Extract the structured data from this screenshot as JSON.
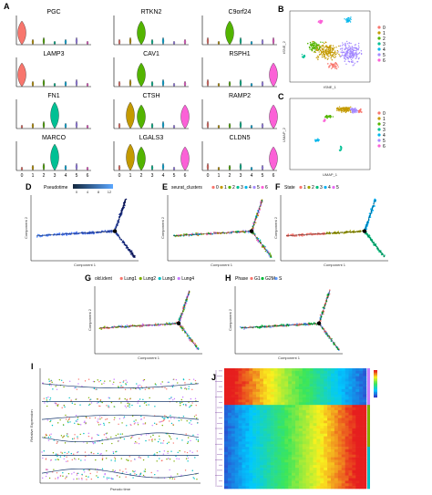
{
  "panels": {
    "A": "A",
    "B": "B",
    "C": "C",
    "D": "D",
    "E": "E",
    "F": "F",
    "G": "G",
    "H": "H",
    "I": "I",
    "J": "J"
  },
  "violin_genes": [
    "PGC",
    "RTKN2",
    "C9orf24",
    "LAMP3",
    "CAV1",
    "RSPH1",
    "FN1",
    "CTSH",
    "RAMP2",
    "MARCO",
    "LGALS3",
    "CLDN5"
  ],
  "cluster_ids": [
    "0",
    "1",
    "2",
    "3",
    "4",
    "5",
    "6"
  ],
  "cluster_colors": [
    "#f8766d",
    "#c49a00",
    "#53b400",
    "#00c094",
    "#00b6eb",
    "#a58aff",
    "#fb61d7"
  ],
  "panel_d": {
    "legend_title": "Pseudotime",
    "ticks": [
      "0",
      "4",
      "8",
      "12"
    ]
  },
  "panel_e": {
    "legend_title": "seurat_clusters",
    "items": [
      "0",
      "1",
      "2",
      "3",
      "4",
      "5",
      "6"
    ]
  },
  "panel_f": {
    "legend_title": "State",
    "items": [
      "1",
      "2",
      "3",
      "4",
      "5"
    ],
    "colors": [
      "#f8766d",
      "#a3a500",
      "#00bf7d",
      "#00b0f6",
      "#e76bf3"
    ]
  },
  "panel_g": {
    "legend_title": "old.ident",
    "items": [
      "Lung1",
      "Lung2",
      "Lung3",
      "Lung4"
    ],
    "colors": [
      "#f8766d",
      "#7cae00",
      "#00bfc4",
      "#c77cff"
    ]
  },
  "panel_h": {
    "legend_title": "Phase",
    "items": [
      "G1",
      "G2M",
      "S"
    ],
    "colors": [
      "#f8766d",
      "#00ba38",
      "#619cff"
    ]
  },
  "axis_labels": {
    "b_x": "tSNE_1",
    "b_y": "tSNE_2",
    "c_x": "UMAP_1",
    "c_y": "UMAP_2",
    "traj_x": "Component 1",
    "traj_y": "Component 2",
    "i_x": "Pseudo time",
    "i_y": "Relative Expression"
  }
}
